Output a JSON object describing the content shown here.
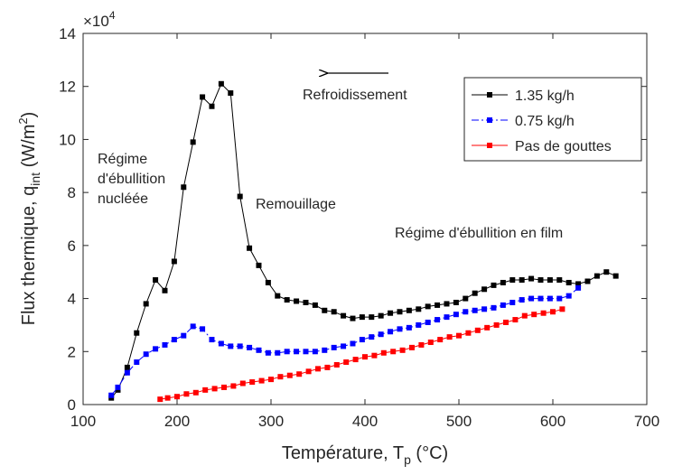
{
  "chart_data": {
    "type": "line",
    "title": "",
    "xlabel": "Température, T",
    "xlabel_sub": "p",
    "xlabel_unit": " (°C)",
    "ylabel": "Flux thermique, q",
    "ylabel_sub": "int",
    "ylabel_unit": " (W/m",
    "ylabel_sup": "2",
    "ylabel_close": ")",
    "y_multiplier": "×10",
    "y_multiplier_exp": "4",
    "xlim": [
      100,
      700
    ],
    "ylim": [
      0,
      14
    ],
    "xticks": [
      100,
      200,
      300,
      400,
      500,
      600,
      700
    ],
    "yticks": [
      0,
      2,
      4,
      6,
      8,
      10,
      12,
      14
    ],
    "grid": false,
    "legend_position": "top-right",
    "series": [
      {
        "name": "1.35 kg/h",
        "color": "#000000",
        "line_style": "solid",
        "marker": "square",
        "x": [
          130,
          137,
          147,
          157,
          167,
          177,
          187,
          197,
          207,
          217,
          227,
          237,
          247,
          257,
          267,
          277,
          287,
          297,
          307,
          317,
          327,
          337,
          347,
          357,
          367,
          377,
          387,
          397,
          407,
          417,
          427,
          437,
          447,
          457,
          467,
          477,
          487,
          497,
          507,
          517,
          527,
          537,
          547,
          557,
          567,
          577,
          587,
          597,
          607,
          617,
          627,
          637,
          647,
          657,
          667
        ],
        "y": [
          0.25,
          0.55,
          1.4,
          2.7,
          3.8,
          4.7,
          4.3,
          5.4,
          8.2,
          9.9,
          11.6,
          11.25,
          12.1,
          11.75,
          7.85,
          5.9,
          5.25,
          4.6,
          4.1,
          3.95,
          3.9,
          3.85,
          3.75,
          3.55,
          3.5,
          3.35,
          3.25,
          3.3,
          3.3,
          3.35,
          3.45,
          3.5,
          3.55,
          3.6,
          3.7,
          3.75,
          3.8,
          3.85,
          4.0,
          4.2,
          4.35,
          4.5,
          4.6,
          4.7,
          4.7,
          4.75,
          4.7,
          4.7,
          4.7,
          4.6,
          4.55,
          4.65,
          4.85,
          5.0,
          4.85
        ]
      },
      {
        "name": "0.75 kg/h",
        "color": "#0000ff",
        "line_style": "dashdot",
        "marker": "square",
        "x": [
          130,
          137,
          147,
          157,
          167,
          177,
          187,
          197,
          207,
          217,
          227,
          237,
          247,
          257,
          267,
          277,
          287,
          297,
          307,
          317,
          327,
          337,
          347,
          357,
          367,
          377,
          387,
          397,
          407,
          417,
          427,
          437,
          447,
          457,
          467,
          477,
          487,
          497,
          507,
          517,
          527,
          537,
          547,
          557,
          567,
          577,
          587,
          597,
          607,
          617,
          627
        ],
        "y": [
          0.35,
          0.65,
          1.2,
          1.6,
          1.9,
          2.1,
          2.25,
          2.45,
          2.6,
          2.95,
          2.85,
          2.45,
          2.3,
          2.2,
          2.2,
          2.15,
          2.05,
          1.95,
          1.95,
          2.0,
          2.0,
          2.0,
          2.0,
          2.05,
          2.15,
          2.2,
          2.3,
          2.45,
          2.55,
          2.65,
          2.75,
          2.85,
          2.9,
          3.0,
          3.1,
          3.2,
          3.3,
          3.4,
          3.5,
          3.55,
          3.6,
          3.65,
          3.75,
          3.85,
          3.95,
          4.0,
          4.0,
          4.0,
          4.0,
          4.1,
          4.4
        ]
      },
      {
        "name": "Pas de gouttes",
        "color": "#ff0000",
        "line_style": "solid",
        "marker": "square",
        "x": [
          182,
          190,
          200,
          210,
          220,
          230,
          240,
          250,
          260,
          270,
          280,
          290,
          300,
          310,
          320,
          330,
          340,
          350,
          360,
          370,
          380,
          390,
          400,
          410,
          420,
          430,
          440,
          450,
          460,
          470,
          480,
          490,
          500,
          510,
          520,
          530,
          540,
          550,
          560,
          570,
          580,
          590,
          600,
          610
        ],
        "y": [
          0.2,
          0.25,
          0.3,
          0.4,
          0.45,
          0.55,
          0.6,
          0.65,
          0.7,
          0.8,
          0.85,
          0.9,
          0.95,
          1.05,
          1.1,
          1.15,
          1.25,
          1.35,
          1.4,
          1.5,
          1.6,
          1.7,
          1.8,
          1.85,
          1.95,
          2.0,
          2.05,
          2.15,
          2.25,
          2.35,
          2.45,
          2.55,
          2.6,
          2.7,
          2.8,
          2.9,
          3.0,
          3.1,
          3.2,
          3.35,
          3.4,
          3.45,
          3.5,
          3.6
        ]
      }
    ],
    "annotations": {
      "refroidissement": "Refroidissement",
      "regime_nucleee": [
        "Régime",
        "d'ébullition",
        "nucléée"
      ],
      "remouillage": "Remouillage",
      "regime_film": "Régime d'ébullition en film"
    }
  }
}
